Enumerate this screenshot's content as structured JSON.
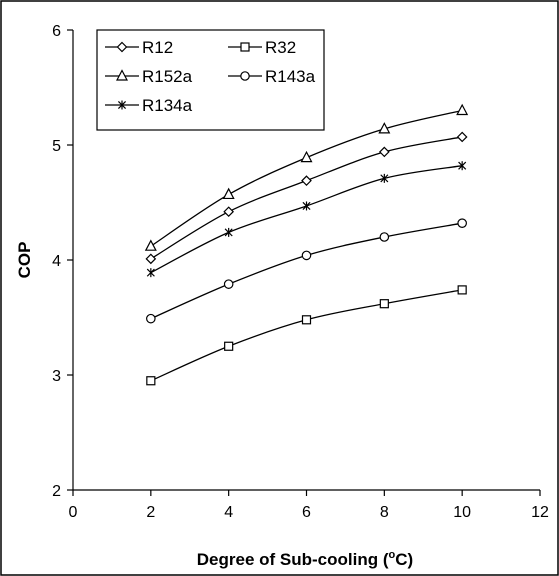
{
  "chart_data": {
    "type": "line",
    "xlabel": "Degree of Sub-cooling (",
    "xlabel_sup": "o",
    "xlabel_end": "C)",
    "ylabel": "COP",
    "xlim": [
      0,
      12
    ],
    "ylim": [
      2,
      6
    ],
    "xticks": [
      "0",
      "2",
      "4",
      "6",
      "8",
      "10",
      "12"
    ],
    "yticks": [
      "2",
      "3",
      "4",
      "5",
      "6"
    ],
    "grid": false,
    "legend_position": "top-left",
    "x": [
      2,
      4,
      6,
      8,
      10
    ],
    "series": [
      {
        "name": "R12",
        "marker": "diamond",
        "values": [
          4.01,
          4.42,
          4.69,
          4.94,
          5.07
        ]
      },
      {
        "name": "R32",
        "marker": "square",
        "values": [
          2.95,
          3.25,
          3.48,
          3.62,
          3.74
        ]
      },
      {
        "name": "R152a",
        "marker": "triangle",
        "values": [
          4.12,
          4.57,
          4.89,
          5.14,
          5.3
        ]
      },
      {
        "name": "R143a",
        "marker": "circle",
        "values": [
          3.49,
          3.79,
          4.04,
          4.2,
          4.32
        ]
      },
      {
        "name": "R134a",
        "marker": "star",
        "values": [
          3.89,
          4.24,
          4.47,
          4.71,
          4.82
        ]
      }
    ]
  }
}
